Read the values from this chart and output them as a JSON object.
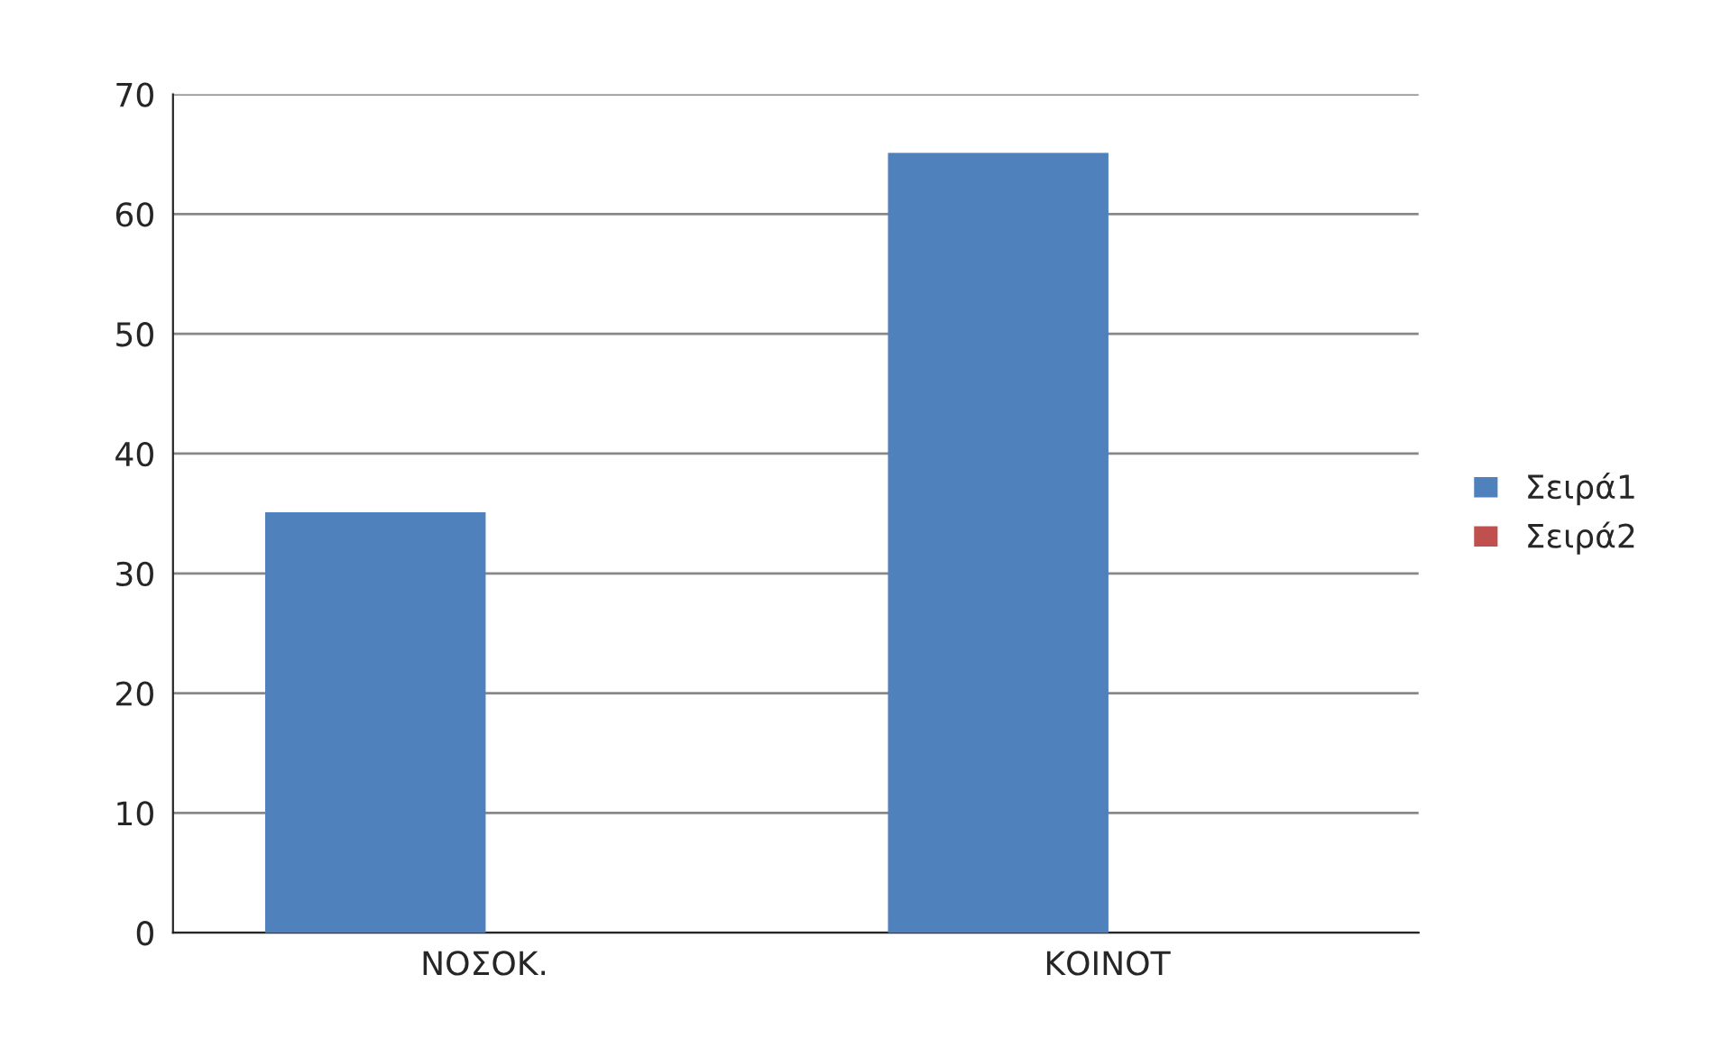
{
  "chart_data": {
    "type": "bar",
    "categories": [
      "ΝΟΣΟΚ.",
      "ΚΟΙΝΟΤ"
    ],
    "series": [
      {
        "name": "Σειρά1",
        "color": "#4f81bd",
        "values": [
          35,
          65
        ]
      },
      {
        "name": "Σειρά2",
        "color": "#c0504d",
        "values": [
          null,
          null
        ]
      }
    ],
    "ylim": [
      0,
      70
    ],
    "yticks": [
      0,
      10,
      20,
      30,
      40,
      50,
      60,
      70
    ],
    "grid": "y",
    "legend": "right"
  }
}
